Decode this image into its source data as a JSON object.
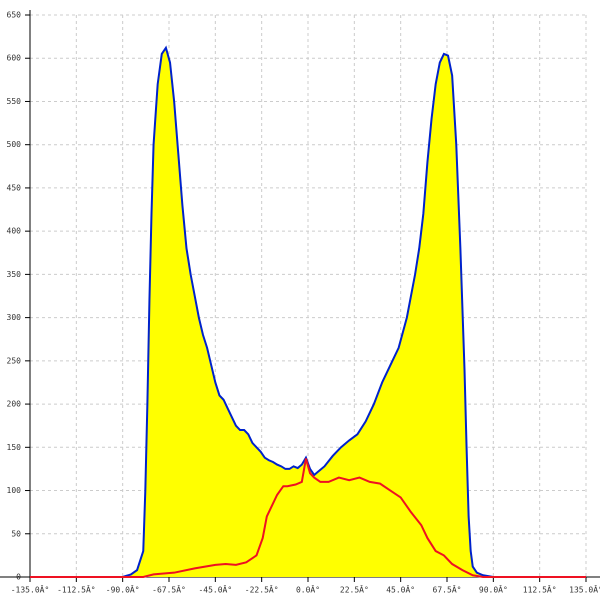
{
  "chart_data": {
    "type": "area",
    "grid": true,
    "xlim": [
      -135,
      135
    ],
    "ylim": [
      0,
      650
    ],
    "xticks": [
      {
        "value": -135,
        "label": "-135.0Â°"
      },
      {
        "value": -112.5,
        "label": "-112.5Â°"
      },
      {
        "value": -90,
        "label": "-90.0Â°"
      },
      {
        "value": -67.5,
        "label": "-67.5Â°"
      },
      {
        "value": -45,
        "label": "-45.0Â°"
      },
      {
        "value": -22.5,
        "label": "-22.5Â°"
      },
      {
        "value": 0,
        "label": "0.0Â°"
      },
      {
        "value": 22.5,
        "label": "22.5Â°"
      },
      {
        "value": 45,
        "label": "45.0Â°"
      },
      {
        "value": 67.5,
        "label": "67.5Â°"
      },
      {
        "value": 90,
        "label": "90.0Â°"
      },
      {
        "value": 112.5,
        "label": "112.5Â°"
      },
      {
        "value": 135,
        "label": "135.0Â°"
      }
    ],
    "yticks": [
      0,
      50,
      100,
      150,
      200,
      250,
      300,
      350,
      400,
      450,
      500,
      550,
      600,
      650
    ],
    "series": [
      {
        "color": "#0022cc",
        "fill": "#ffff00",
        "x": [
          -90,
          -86,
          -83,
          -80,
          -79,
          -78,
          -77,
          -76,
          -75,
          -73,
          -71,
          -69,
          -67,
          -65,
          -63,
          -61,
          -59,
          -57,
          -55,
          -53,
          -51,
          -49,
          -47,
          -45,
          -43,
          -41,
          -39,
          -37,
          -35,
          -33,
          -31,
          -29,
          -27,
          -25,
          -23,
          -21,
          -19,
          -17,
          -15,
          -13,
          -11,
          -9,
          -7,
          -5,
          -3,
          -1,
          1,
          3,
          5,
          8,
          12,
          16,
          20,
          24,
          28,
          32,
          36,
          40,
          44,
          48,
          52,
          54,
          56,
          58,
          60,
          62,
          64,
          66,
          68,
          70,
          72,
          74,
          76,
          77,
          78,
          79,
          80,
          82,
          85,
          90
        ],
        "values": [
          0,
          3,
          8,
          30,
          100,
          200,
          320,
          420,
          500,
          570,
          605,
          612,
          595,
          550,
          490,
          430,
          380,
          350,
          325,
          300,
          280,
          265,
          245,
          225,
          210,
          205,
          195,
          185,
          175,
          170,
          170,
          165,
          155,
          150,
          145,
          138,
          135,
          133,
          130,
          128,
          125,
          125,
          128,
          126,
          130,
          138,
          125,
          118,
          122,
          128,
          140,
          150,
          158,
          165,
          180,
          200,
          225,
          245,
          265,
          300,
          350,
          380,
          420,
          480,
          530,
          570,
          595,
          605,
          603,
          580,
          500,
          380,
          240,
          150,
          70,
          30,
          12,
          5,
          2,
          0
        ]
      },
      {
        "color": "#ee1122",
        "x": [
          -135,
          -80,
          -75,
          -65,
          -55,
          -50,
          -45,
          -40,
          -35,
          -30,
          -25,
          -22,
          -20,
          -18,
          -15,
          -12,
          -10,
          -6,
          -3,
          -1,
          1,
          3,
          6,
          10,
          15,
          20,
          25,
          30,
          35,
          40,
          45,
          50,
          55,
          58,
          62,
          66,
          70,
          75,
          80,
          85,
          135
        ],
        "values": [
          0,
          0,
          3,
          5,
          10,
          12,
          14,
          15,
          14,
          17,
          25,
          45,
          70,
          80,
          95,
          105,
          105,
          107,
          110,
          137,
          120,
          115,
          110,
          110,
          115,
          112,
          115,
          110,
          108,
          100,
          92,
          75,
          60,
          45,
          30,
          25,
          15,
          8,
          2,
          0,
          0
        ]
      }
    ]
  }
}
